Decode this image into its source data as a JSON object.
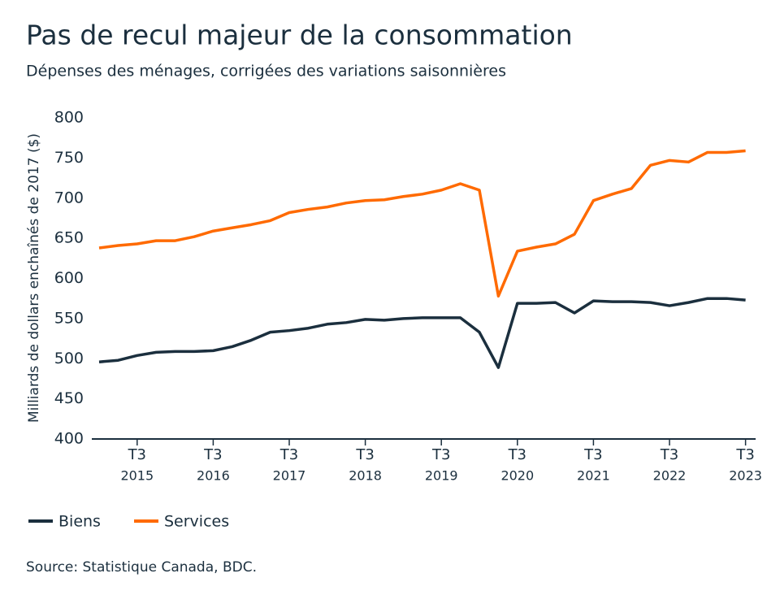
{
  "chart_data": {
    "type": "line",
    "title": "Pas de recul majeur de la consommation",
    "subtitle": "Dépenses des ménages, corrigées des variations saisonnières",
    "y_label": "Milliards de dollars enchaînés de 2017 ($)",
    "source": "Source: Statistique Canada, BDC.",
    "categories": [
      null,
      null,
      [
        "T3",
        "2015"
      ],
      null,
      null,
      null,
      [
        "T3",
        "2016"
      ],
      null,
      null,
      null,
      [
        "T3",
        "2017"
      ],
      null,
      null,
      null,
      [
        "T3",
        "2018"
      ],
      null,
      null,
      null,
      [
        "T3",
        "2019"
      ],
      null,
      null,
      null,
      [
        "T3",
        "2020"
      ],
      null,
      null,
      null,
      [
        "T3",
        "2021"
      ],
      null,
      null,
      null,
      [
        "T3",
        "2022"
      ],
      null,
      null,
      null,
      [
        "T3",
        "2023"
      ]
    ],
    "series": [
      {
        "name": "Biens",
        "color": "#1b2f3e",
        "values": [
          496,
          498,
          504,
          508,
          509,
          509,
          510,
          515,
          523,
          533,
          535,
          538,
          543,
          545,
          549,
          548,
          550,
          551,
          551,
          551,
          533,
          489,
          569,
          569,
          570,
          557,
          572,
          571,
          571,
          570,
          566,
          570,
          575,
          575,
          573
        ]
      },
      {
        "name": "Services",
        "color": "#ff6a00",
        "values": [
          638,
          641,
          643,
          647,
          647,
          652,
          659,
          663,
          667,
          672,
          682,
          686,
          689,
          694,
          697,
          698,
          702,
          705,
          710,
          718,
          710,
          578,
          634,
          639,
          643,
          655,
          697,
          705,
          712,
          741,
          747,
          745,
          757,
          757,
          759
        ]
      }
    ],
    "ylim": [
      400,
      800
    ],
    "yticks": [
      400,
      450,
      500,
      550,
      600,
      650,
      700,
      750,
      800
    ],
    "grid": false,
    "legend": "bottom-left"
  }
}
